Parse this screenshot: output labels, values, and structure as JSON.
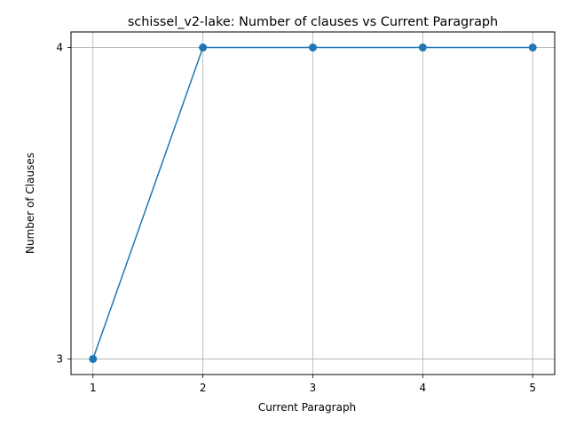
{
  "chart_data": {
    "type": "line",
    "title": "schissel_v2-lake: Number of clauses vs Current Paragraph",
    "xlabel": "Current Paragraph",
    "ylabel": "Number of Clauses",
    "x": [
      1,
      2,
      3,
      4,
      5
    ],
    "xticks": [
      "1",
      "2",
      "3",
      "4",
      "5"
    ],
    "yticks": [
      "3",
      "4"
    ],
    "series": [
      {
        "values": [
          3,
          4,
          4,
          4,
          4
        ],
        "color": "#1f77b4",
        "marker": "circle"
      }
    ],
    "xlim": [
      0.8,
      5.2
    ],
    "ylim": [
      2.95,
      4.05
    ],
    "grid": true,
    "legend": false
  }
}
